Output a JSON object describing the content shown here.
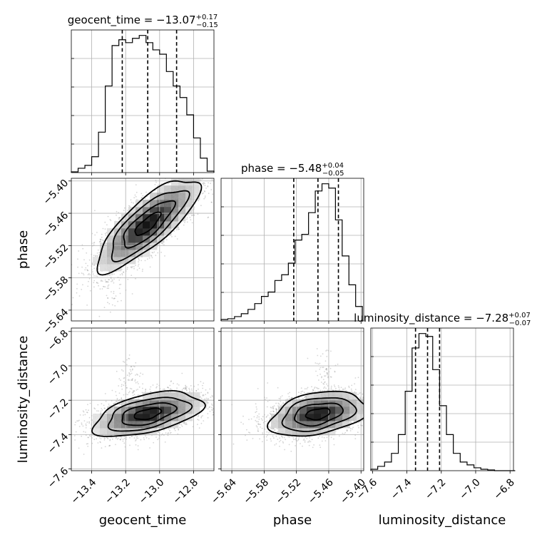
{
  "chart_data": {
    "type": "corner",
    "parameters": [
      "geocent_time",
      "phase",
      "luminosity_distance"
    ],
    "axis_labels": {
      "geocent_time": "geocent_time",
      "phase": "phase",
      "luminosity_distance": "luminosity_distance"
    },
    "titles": [
      {
        "param": "geocent_time",
        "text": "geocent_time = −13.07",
        "plus": "+0.17",
        "minus": "−0.15"
      },
      {
        "param": "phase",
        "text": "phase = −5.48",
        "plus": "+0.04",
        "minus": "−0.05"
      },
      {
        "param": "luminosity_distance",
        "text": "luminosity_distance = −7.28",
        "plus": "+0.07",
        "minus": "−0.07"
      }
    ],
    "ranges": {
      "geocent_time": [
        -13.52,
        -12.68
      ],
      "phase": [
        -5.66,
        -5.395
      ],
      "luminosity_distance": [
        -7.61,
        -6.78
      ]
    },
    "ticks": {
      "geocent_time": [
        -13.4,
        -13.2,
        -13.0,
        -12.8
      ],
      "phase": [
        -5.64,
        -5.58,
        -5.52,
        -5.46,
        -5.4
      ],
      "luminosity_distance": [
        -7.6,
        -7.4,
        -7.2,
        -7.0,
        -6.8
      ]
    },
    "tick_labels": {
      "geocent_time": [
        "−13.4",
        "−13.2",
        "−13.0",
        "−12.8"
      ],
      "phase": [
        "−5.64",
        "−5.58",
        "−5.52",
        "−5.46",
        "−5.40"
      ],
      "luminosity_distance": [
        "−7.6",
        "−7.4",
        "−7.2",
        "−7.0",
        "−6.8"
      ]
    },
    "quantiles": {
      "geocent_time": [
        -13.22,
        -13.07,
        -12.9
      ],
      "phase": [
        -5.525,
        -5.48,
        -5.442
      ],
      "luminosity_distance": [
        -7.35,
        -7.28,
        -7.21
      ]
    },
    "histograms": {
      "geocent_time": {
        "edges": [
          -13.52,
          -13.48,
          -13.44,
          -13.4,
          -13.36,
          -13.32,
          -13.28,
          -13.24,
          -13.2,
          -13.16,
          -13.12,
          -13.08,
          -13.04,
          -13.0,
          -12.96,
          -12.92,
          -12.88,
          -12.84,
          -12.8,
          -12.76,
          -12.72,
          -12.68
        ],
        "counts": [
          0.5,
          3,
          5,
          11,
          28,
          60,
          88,
          92,
          90,
          93,
          95,
          90,
          85,
          82,
          70,
          60,
          52,
          40,
          24,
          10,
          1
        ]
      },
      "phase": {
        "edges": [
          -5.66,
          -5.6475,
          -5.635,
          -5.6225,
          -5.61,
          -5.5975,
          -5.585,
          -5.5725,
          -5.56,
          -5.5475,
          -5.535,
          -5.5225,
          -5.51,
          -5.4975,
          -5.485,
          -5.4725,
          -5.46,
          -5.4475,
          -5.435,
          -5.4225,
          -5.41,
          -5.3975
        ],
        "counts": [
          1,
          1.5,
          3,
          5,
          8,
          12,
          17,
          20,
          28,
          32,
          40,
          56,
          60,
          75,
          90,
          95,
          92,
          70,
          45,
          25,
          10
        ]
      },
      "luminosity_distance": {
        "edges": [
          -7.61,
          -7.57,
          -7.53,
          -7.49,
          -7.45,
          -7.41,
          -7.37,
          -7.33,
          -7.29,
          -7.25,
          -7.21,
          -7.17,
          -7.13,
          -7.09,
          -7.05,
          -7.01,
          -6.97,
          -6.93,
          -6.89,
          -6.85,
          -6.81,
          -6.77
        ],
        "counts": [
          1,
          3,
          6,
          12,
          25,
          55,
          85,
          95,
          93,
          70,
          45,
          25,
          12,
          6,
          4,
          2,
          1,
          0.5,
          0,
          0,
          0
        ]
      }
    },
    "pairs": [
      {
        "x": "geocent_time",
        "y": "phase",
        "center": [
          -13.07,
          -5.48
        ],
        "sigma": [
          0.15,
          0.043
        ],
        "corr": 0.8,
        "secondary_mode": [
          -13.28,
          -5.58
        ]
      },
      {
        "x": "geocent_time",
        "y": "luminosity_distance",
        "center": [
          -13.07,
          -7.28
        ],
        "sigma": [
          0.16,
          0.065
        ],
        "corr": 0.5,
        "secondary_mode": [
          -13.18,
          -7.07
        ]
      },
      {
        "x": "phase",
        "y": "luminosity_distance",
        "center": [
          -5.48,
          -7.28
        ],
        "sigma": [
          0.045,
          0.065
        ],
        "corr": 0.35,
        "secondary_mode": [
          -5.47,
          -7.05
        ]
      }
    ],
    "contour_levels_sigma": [
      0.5,
      1.0,
      1.5,
      2.0
    ],
    "grid": true,
    "colors": {
      "line": "#000000",
      "points": "#888888",
      "grid": "#b0b0b0"
    }
  }
}
